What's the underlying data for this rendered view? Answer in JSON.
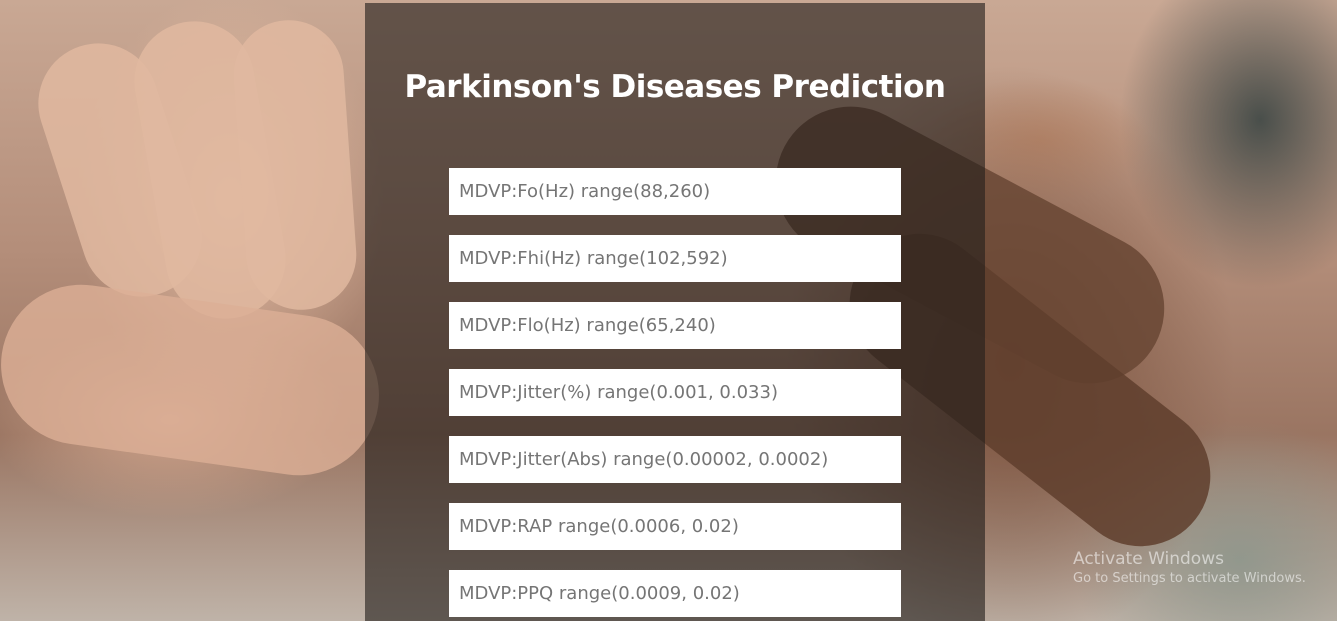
{
  "page": {
    "title": "Parkinson's Diseases Prediction"
  },
  "form": {
    "fields": [
      {
        "placeholder": "MDVP:Fo(Hz) range(88,260)",
        "value": ""
      },
      {
        "placeholder": "MDVP:Fhi(Hz) range(102,592)",
        "value": ""
      },
      {
        "placeholder": "MDVP:Flo(Hz) range(65,240)",
        "value": ""
      },
      {
        "placeholder": "MDVP:Jitter(%) range(0.001, 0.033)",
        "value": ""
      },
      {
        "placeholder": "MDVP:Jitter(Abs) range(0.00002, 0.0002)",
        "value": ""
      },
      {
        "placeholder": "MDVP:RAP range(0.0006, 0.02)",
        "value": ""
      },
      {
        "placeholder": "MDVP:PPQ range(0.0009, 0.02)",
        "value": ""
      }
    ]
  },
  "watermark": {
    "title": "Activate Windows",
    "subtitle": "Go to Settings to activate Windows."
  },
  "colors": {
    "panel_overlay": "#231e1c",
    "input_background": "#ffffff",
    "placeholder_text": "#757575",
    "title_text": "#ffffff"
  }
}
